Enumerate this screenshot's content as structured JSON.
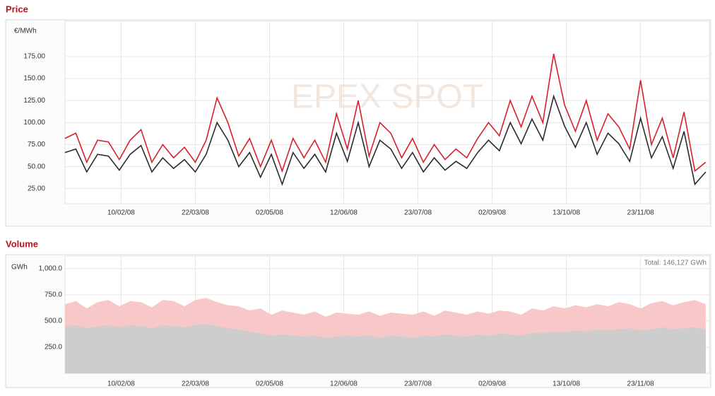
{
  "chart_data": [
    {
      "type": "line",
      "title": "Price",
      "y_label": "€/MWh",
      "watermark": "EPEX SPOT",
      "x": [
        "10/01/08",
        "16/01/08",
        "22/01/08",
        "28/01/08",
        "03/02/08",
        "09/02/08",
        "15/02/08",
        "21/02/08",
        "27/02/08",
        "04/03/08",
        "10/03/08",
        "16/03/08",
        "22/03/08",
        "28/03/08",
        "03/04/08",
        "09/04/08",
        "15/04/08",
        "21/04/08",
        "27/04/08",
        "03/05/08",
        "09/05/08",
        "15/05/08",
        "21/05/08",
        "27/05/08",
        "02/06/08",
        "08/06/08",
        "14/06/08",
        "20/06/08",
        "26/06/08",
        "02/07/08",
        "08/07/08",
        "14/07/08",
        "20/07/08",
        "26/07/08",
        "01/08/08",
        "07/08/08",
        "13/08/08",
        "19/08/08",
        "25/08/08",
        "31/08/08",
        "06/09/08",
        "12/09/08",
        "18/09/08",
        "24/09/08",
        "30/09/08",
        "06/10/08",
        "12/10/08",
        "18/10/08",
        "24/10/08",
        "30/10/08",
        "05/11/08",
        "11/11/08",
        "17/11/08",
        "23/11/08",
        "29/11/08",
        "05/12/08",
        "11/12/08",
        "17/12/08",
        "23/12/08",
        "29/12/08"
      ],
      "series": [
        {
          "color": "#d9202a",
          "values": [
            82,
            88,
            55,
            80,
            78,
            58,
            80,
            92,
            55,
            75,
            60,
            72,
            55,
            80,
            128,
            100,
            62,
            82,
            50,
            80,
            45,
            82,
            60,
            80,
            55,
            110,
            70,
            125,
            62,
            100,
            88,
            60,
            82,
            55,
            75,
            58,
            70,
            60,
            82,
            100,
            85,
            125,
            95,
            130,
            100,
            178,
            120,
            90,
            125,
            80,
            110,
            95,
            70,
            148,
            75,
            105,
            60,
            112,
            45,
            55
          ]
        },
        {
          "color": "#2b2b2b",
          "values": [
            66,
            70,
            44,
            64,
            62,
            46,
            64,
            74,
            44,
            60,
            48,
            58,
            44,
            64,
            100,
            80,
            50,
            66,
            38,
            64,
            30,
            66,
            48,
            64,
            44,
            88,
            56,
            100,
            50,
            80,
            70,
            48,
            66,
            44,
            60,
            46,
            56,
            48,
            66,
            80,
            68,
            100,
            76,
            104,
            80,
            130,
            96,
            72,
            100,
            64,
            88,
            76,
            56,
            105,
            60,
            84,
            48,
            90,
            30,
            44
          ]
        }
      ],
      "xlim": [
        "10/01/08",
        "31/12/08"
      ],
      "xticks": [
        "10/02/08",
        "22/03/08",
        "02/05/08",
        "12/06/08",
        "23/07/08",
        "02/09/08",
        "13/10/08",
        "23/11/08"
      ],
      "ylim": [
        8,
        215
      ],
      "yticks": [
        {
          "value": 25,
          "label": "25.00"
        },
        {
          "value": 50,
          "label": "50.00"
        },
        {
          "value": 75,
          "label": "75.00"
        },
        {
          "value": 100,
          "label": "100.00"
        },
        {
          "value": 125,
          "label": "125.00"
        },
        {
          "value": 150,
          "label": "150.00"
        },
        {
          "value": 175,
          "label": "175.00"
        }
      ],
      "grid": true
    },
    {
      "type": "area",
      "title": "Volume",
      "y_label": "GWh",
      "annotation": "Total: 146,127 GWh",
      "x": [
        "10/01/08",
        "16/01/08",
        "22/01/08",
        "28/01/08",
        "03/02/08",
        "09/02/08",
        "15/02/08",
        "21/02/08",
        "27/02/08",
        "04/03/08",
        "10/03/08",
        "16/03/08",
        "22/03/08",
        "28/03/08",
        "03/04/08",
        "09/04/08",
        "15/04/08",
        "21/04/08",
        "27/04/08",
        "03/05/08",
        "09/05/08",
        "15/05/08",
        "21/05/08",
        "27/05/08",
        "02/06/08",
        "08/06/08",
        "14/06/08",
        "20/06/08",
        "26/06/08",
        "02/07/08",
        "08/07/08",
        "14/07/08",
        "20/07/08",
        "26/07/08",
        "01/08/08",
        "07/08/08",
        "13/08/08",
        "19/08/08",
        "25/08/08",
        "31/08/08",
        "06/09/08",
        "12/09/08",
        "18/09/08",
        "24/09/08",
        "30/09/08",
        "06/10/08",
        "12/10/08",
        "18/10/08",
        "24/10/08",
        "30/10/08",
        "05/11/08",
        "11/11/08",
        "17/11/08",
        "23/11/08",
        "29/11/08",
        "05/12/08",
        "11/12/08",
        "17/12/08",
        "23/12/08",
        "29/12/08"
      ],
      "series": [
        {
          "color": "#f8c8c8",
          "values": [
            660,
            690,
            620,
            680,
            700,
            640,
            690,
            680,
            630,
            700,
            690,
            640,
            700,
            720,
            680,
            650,
            640,
            600,
            620,
            560,
            600,
            580,
            560,
            590,
            540,
            580,
            570,
            560,
            590,
            550,
            580,
            570,
            560,
            590,
            550,
            600,
            580,
            560,
            590,
            570,
            600,
            590,
            560,
            620,
            600,
            640,
            620,
            650,
            630,
            660,
            640,
            680,
            660,
            620,
            670,
            690,
            650,
            680,
            700,
            660
          ]
        },
        {
          "color": "#cdcdcd",
          "values": [
            450,
            460,
            430,
            450,
            460,
            440,
            460,
            450,
            430,
            460,
            450,
            440,
            460,
            470,
            450,
            430,
            420,
            400,
            380,
            360,
            370,
            360,
            350,
            360,
            340,
            350,
            360,
            350,
            360,
            340,
            360,
            350,
            340,
            360,
            350,
            370,
            360,
            350,
            370,
            360,
            380,
            370,
            360,
            390,
            380,
            400,
            390,
            410,
            400,
            420,
            410,
            420,
            430,
            410,
            420,
            440,
            420,
            430,
            440,
            420
          ]
        }
      ],
      "xlim": [
        "10/01/08",
        "31/12/08"
      ],
      "xticks": [
        "10/02/08",
        "22/03/08",
        "02/05/08",
        "12/06/08",
        "23/07/08",
        "02/09/08",
        "13/10/08",
        "23/11/08"
      ],
      "ylim": [
        0,
        1120
      ],
      "yticks": [
        {
          "value": 250,
          "label": "250.0"
        },
        {
          "value": 500,
          "label": "500.0"
        },
        {
          "value": 750,
          "label": "750.0"
        },
        {
          "value": 1000,
          "label": "1,000.0"
        }
      ],
      "grid": true
    }
  ]
}
